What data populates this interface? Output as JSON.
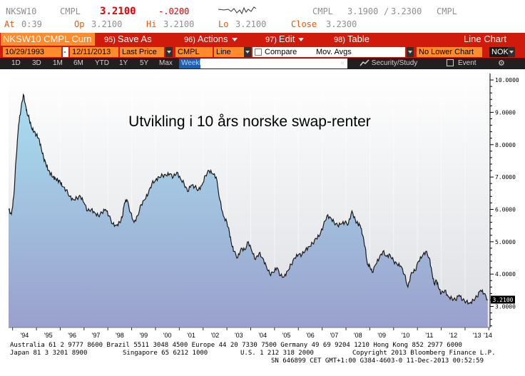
{
  "quote": {
    "ticker": "NKSW10",
    "source": "CMPL",
    "last": "3.2100",
    "change": "-.0200",
    "bid_source": "CMPL",
    "bid": "3.1900",
    "ask": "3.2300",
    "ask_source": "CMPL",
    "bid_ask_sep": "/",
    "at_label": "At",
    "at_value": "0:39",
    "op_label": "Op",
    "op_value": "3.2100",
    "hi_label": "Hi",
    "hi_value": "3.2100",
    "lo_label": "Lo",
    "lo_value": "3.2100",
    "close_label": "Close",
    "close_value": "3.2300"
  },
  "toolbar": {
    "ticker_field": "NKSW10 CMPL Curn",
    "save_as": {
      "num": "95)",
      "label": "Save As"
    },
    "actions": {
      "num": "96)",
      "label": "Actions"
    },
    "edit": {
      "num": "97)",
      "label": "Edit"
    },
    "table": {
      "num": "98)",
      "label": "Table"
    },
    "view_title": "Line Chart"
  },
  "params": {
    "start_date": "10/29/1993",
    "dash": "-",
    "end_date": "12/11/2013",
    "price_field": "Last Price",
    "source_field": "CMPL",
    "style_field": "Line",
    "compare_label": "Compare",
    "mov_avgs_label": "Mov. Avgs",
    "lower_chart": "No Lower Chart",
    "currency": "NOK"
  },
  "range_bar": {
    "buttons": [
      "1D",
      "3D",
      "1M",
      "6M",
      "YTD",
      "1Y",
      "5Y",
      "Max"
    ],
    "frequency": "Weekly",
    "field_arrow": "«",
    "security_study": "Security/Study",
    "event": "Event"
  },
  "footer": {
    "line1": "Australia 61 2 9777 8600 Brazil 5511 3048 4500 Europe 44 20 7330 7500 Germany 49 69 9204 1210 Hong Kong 852 2977 6000",
    "line2_left": "Japan 81 3 3201 8900",
    "line2_mid": "Singapore 65 6212 1000",
    "line2_us": "U.S. 1 212 318 2000",
    "line2_right": "Copyright 2013 Bloomberg Finance L.P.",
    "line3": "SN 646899 CET  GMT+1:00 G384-4603-0 11-Dec-2013 00:52:59"
  },
  "colors": {
    "toolbar_red": "#cf1a0c",
    "field_orange": "#ff8c2a",
    "line": "#1a1a1a",
    "fill_top": "#a8dff0",
    "fill_bottom": "#9aa0cc"
  },
  "chart_data": {
    "type": "area",
    "title": "Utvikling i 10 års norske swap-renter",
    "xlabel": "",
    "ylabel": "",
    "x_ticks": [
      "'94",
      "'95",
      "'96",
      "'97",
      "'98",
      "'99",
      "'00",
      "'01",
      "'02",
      "'03",
      "'04",
      "'05",
      "'06",
      "'07",
      "'08",
      "'09",
      "'10",
      "'11",
      "'12",
      "'13",
      "'14"
    ],
    "y_ticks": [
      "10.0000",
      "9.0000",
      "8.0000",
      "7.0000",
      "6.0000",
      "5.0000",
      "4.0000",
      "3.0000"
    ],
    "ylim": [
      2.35,
      10.2
    ],
    "xlim": [
      1993.83,
      2014.05
    ],
    "last_value_label": "3.2100",
    "grid": "vertical, at year ticks",
    "series": [
      {
        "x": [
          1993.83,
          1993.95,
          1994.05,
          1994.15,
          1994.25,
          1994.35,
          1994.45,
          1994.55,
          1994.6,
          1994.7,
          1994.8,
          1994.9,
          1995.0,
          1995.1,
          1995.2,
          1995.3,
          1995.4,
          1995.5,
          1995.6,
          1995.7,
          1995.8,
          1995.9,
          1996.0,
          1996.1,
          1996.25,
          1996.4,
          1996.55,
          1996.7,
          1996.85,
          1997.0,
          1997.15,
          1997.3,
          1997.45,
          1997.6,
          1997.75,
          1997.9,
          1998.05,
          1998.2,
          1998.35,
          1998.5,
          1998.6,
          1998.7,
          1998.8,
          1998.95,
          1999.1,
          1999.25,
          1999.4,
          1999.55,
          1999.7,
          1999.85,
          2000.0,
          2000.15,
          2000.3,
          2000.45,
          2000.6,
          2000.75,
          2000.9,
          2001.05,
          2001.2,
          2001.35,
          2001.5,
          2001.65,
          2001.8,
          2001.95,
          2002.1,
          2002.25,
          2002.4,
          2002.55,
          2002.7,
          2002.85,
          2003.0,
          2003.1,
          2003.2,
          2003.3,
          2003.45,
          2003.6,
          2003.75,
          2003.9,
          2004.05,
          2004.2,
          2004.35,
          2004.5,
          2004.65,
          2004.8,
          2004.95,
          2005.1,
          2005.25,
          2005.4,
          2005.55,
          2005.7,
          2005.85,
          2006.0,
          2006.15,
          2006.3,
          2006.45,
          2006.6,
          2006.75,
          2006.9,
          2007.05,
          2007.2,
          2007.35,
          2007.5,
          2007.65,
          2007.8,
          2007.95,
          2008.1,
          2008.25,
          2008.4,
          2008.5,
          2008.6,
          2008.7,
          2008.8,
          2008.9,
          2009.0,
          2009.1,
          2009.25,
          2009.4,
          2009.55,
          2009.7,
          2009.85,
          2010.0,
          2010.15,
          2010.3,
          2010.45,
          2010.6,
          2010.75,
          2010.9,
          2011.05,
          2011.2,
          2011.35,
          2011.5,
          2011.6,
          2011.7,
          2011.8,
          2011.9,
          2012.0,
          2012.15,
          2012.3,
          2012.45,
          2012.6,
          2012.75,
          2012.9,
          2013.05,
          2013.2,
          2013.35,
          2013.5,
          2013.65,
          2013.8,
          2013.95
        ],
        "y": [
          6.0,
          5.85,
          6.4,
          7.6,
          8.6,
          9.1,
          9.55,
          9.2,
          9.0,
          8.8,
          8.5,
          8.4,
          8.3,
          8.2,
          7.9,
          7.6,
          7.4,
          7.2,
          7.1,
          7.0,
          6.95,
          6.9,
          6.85,
          6.7,
          6.6,
          6.4,
          6.3,
          6.35,
          6.4,
          6.2,
          5.95,
          6.0,
          5.9,
          5.8,
          5.9,
          6.0,
          5.8,
          5.55,
          5.5,
          5.6,
          5.75,
          6.2,
          6.3,
          5.9,
          5.6,
          5.8,
          6.15,
          6.3,
          6.5,
          6.8,
          6.9,
          7.0,
          7.05,
          7.05,
          7.1,
          7.0,
          7.15,
          6.95,
          6.8,
          6.55,
          6.75,
          6.7,
          6.6,
          6.75,
          7.05,
          7.2,
          7.1,
          7.0,
          6.3,
          5.8,
          5.6,
          5.3,
          4.9,
          4.7,
          4.5,
          4.8,
          4.75,
          5.0,
          4.7,
          4.45,
          4.65,
          4.5,
          4.25,
          4.0,
          4.05,
          4.2,
          3.95,
          3.92,
          4.1,
          4.3,
          4.5,
          4.6,
          4.6,
          4.75,
          4.85,
          4.95,
          5.1,
          5.2,
          5.5,
          5.8,
          5.75,
          5.6,
          5.5,
          5.55,
          5.6,
          5.55,
          5.95,
          5.65,
          5.55,
          5.5,
          5.2,
          4.85,
          4.3,
          4.25,
          4.05,
          4.3,
          4.5,
          4.7,
          4.55,
          4.6,
          4.4,
          4.3,
          4.25,
          4.0,
          3.6,
          4.05,
          4.1,
          4.4,
          4.55,
          4.7,
          4.5,
          4.1,
          3.7,
          3.8,
          3.55,
          3.4,
          3.5,
          3.3,
          3.25,
          3.2,
          3.35,
          3.2,
          3.15,
          3.1,
          3.2,
          3.3,
          3.5,
          3.4,
          3.21
        ]
      }
    ]
  }
}
